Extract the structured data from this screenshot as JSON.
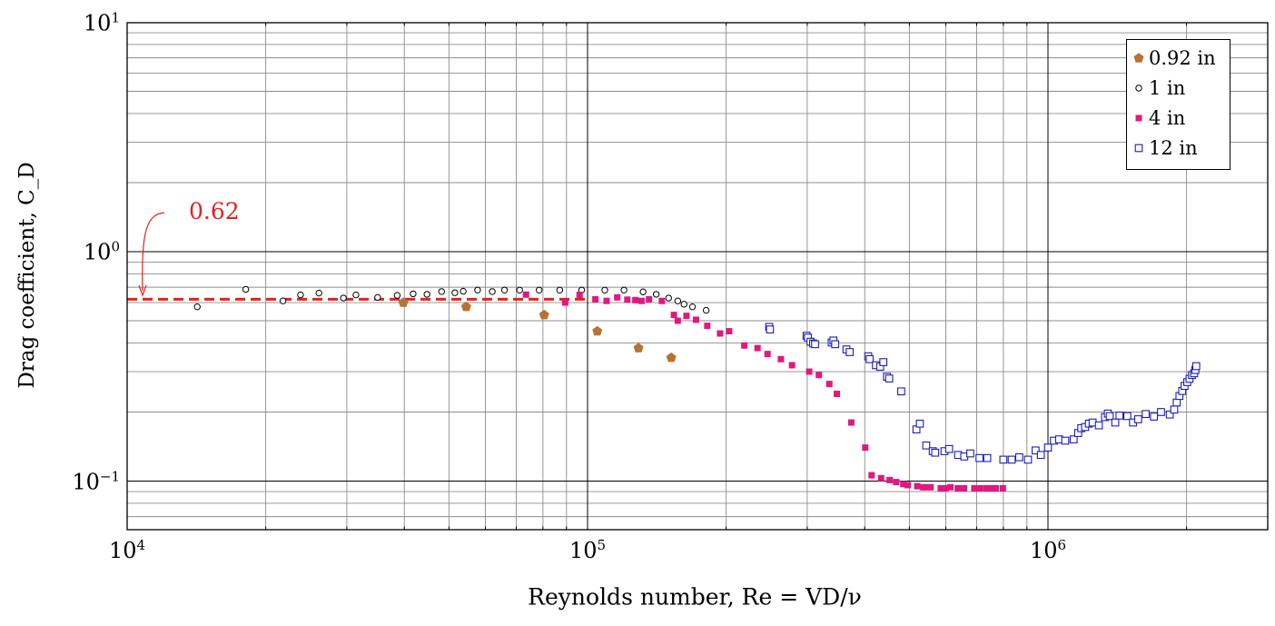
{
  "chart_data": {
    "type": "scatter",
    "xscale": "log",
    "yscale": "log",
    "xlim": [
      10000,
      2500000
    ],
    "ylim": [
      0.062,
      10
    ],
    "xlabel": "Reynolds number, Re = VD/ν",
    "ylabel": "Drag coefficient, C_D",
    "xticks": [
      {
        "value": 10000,
        "base": "10",
        "exp": "4"
      },
      {
        "value": 100000,
        "base": "10",
        "exp": "5"
      },
      {
        "value": 1000000,
        "base": "10",
        "exp": "6"
      }
    ],
    "yticks": [
      {
        "value": 10,
        "base": "10",
        "exp": "1"
      },
      {
        "value": 1,
        "base": "10",
        "exp": "0"
      },
      {
        "value": 0.1,
        "base": "10",
        "exp": "−1"
      }
    ],
    "grid": true,
    "legend_position": "top-right",
    "reference_line": {
      "value": 0.62,
      "label": "0.62",
      "color": "#e8201e",
      "style": "dashed"
    },
    "series": [
      {
        "name": "0.92 in",
        "marker": "pentagon",
        "color": "#b87333",
        "x": [
          39800,
          54500,
          80500,
          105000,
          129000,
          152000
        ],
        "y": [
          0.6,
          0.575,
          0.53,
          0.45,
          0.38,
          0.345
        ]
      },
      {
        "name": "1 in",
        "marker": "circle-open",
        "color": "#000000",
        "x": [
          14200,
          18100,
          21800,
          23800,
          26100,
          29500,
          31400,
          35000,
          38600,
          41800,
          44800,
          48200,
          51500,
          53700,
          57700,
          62100,
          66000,
          71200,
          78500,
          87000,
          97100,
          109000,
          120000,
          132000,
          141000,
          150000,
          157000,
          162000,
          169000,
          181000
        ],
        "y": [
          0.575,
          0.685,
          0.61,
          0.648,
          0.66,
          0.628,
          0.648,
          0.632,
          0.645,
          0.655,
          0.652,
          0.67,
          0.662,
          0.672,
          0.68,
          0.67,
          0.68,
          0.68,
          0.68,
          0.68,
          0.68,
          0.68,
          0.68,
          0.668,
          0.652,
          0.628,
          0.61,
          0.59,
          0.575,
          0.555
        ]
      },
      {
        "name": "4 in",
        "marker": "square-filled",
        "color": "#e0197f",
        "x": [
          73500,
          89400,
          96100,
          104000,
          110000,
          116000,
          122000,
          127000,
          131000,
          136000,
          145000,
          154000,
          157000,
          164000,
          172000,
          182000,
          194000,
          203000,
          219000,
          234000,
          246000,
          263000,
          278000,
          303000,
          318000,
          335000,
          348000,
          374000,
          401000,
          414000,
          434000,
          453000,
          468000,
          485000,
          496000,
          520000,
          535000,
          545000,
          556000,
          585000,
          599000,
          614000,
          637000,
          657000,
          692000,
          712000,
          735000,
          752000,
          770000,
          798000
        ],
        "y": [
          0.65,
          0.6,
          0.648,
          0.62,
          0.61,
          0.632,
          0.618,
          0.615,
          0.61,
          0.62,
          0.61,
          0.53,
          0.5,
          0.525,
          0.505,
          0.475,
          0.44,
          0.45,
          0.39,
          0.38,
          0.358,
          0.34,
          0.32,
          0.3,
          0.29,
          0.265,
          0.24,
          0.18,
          0.14,
          0.106,
          0.103,
          0.101,
          0.099,
          0.097,
          0.096,
          0.095,
          0.094,
          0.094,
          0.094,
          0.093,
          0.093,
          0.094,
          0.093,
          0.093,
          0.093,
          0.093,
          0.093,
          0.093,
          0.093,
          0.093
        ]
      },
      {
        "name": "12 in",
        "marker": "square-open",
        "color": "#1c1cb8",
        "x": [
          248000,
          249000,
          299000,
          301000,
          305000,
          309000,
          312000,
          339000,
          342000,
          345000,
          365000,
          371000,
          407000,
          410000,
          423000,
          432000,
          439000,
          447000,
          452000,
          480000,
          518000,
          527000,
          544000,
          562000,
          569000,
          596000,
          610000,
          638000,
          658000,
          678000,
          710000,
          738000,
          800000,
          834000,
          866000,
          905000,
          940000,
          965000,
          1000000,
          1030000,
          1057000,
          1090000,
          1137000,
          1163000,
          1181000,
          1204000,
          1227000,
          1250000,
          1290000,
          1330000,
          1349000,
          1362000,
          1400000,
          1430000,
          1487000,
          1530000,
          1570000,
          1630000,
          1699000,
          1760000,
          1839000,
          1880000,
          1904000,
          1930000,
          1957000,
          1980000,
          2007000,
          2030000,
          2055000,
          2077000,
          2090000,
          2099000
        ],
        "y": [
          0.47,
          0.458,
          0.43,
          0.422,
          0.405,
          0.398,
          0.395,
          0.402,
          0.41,
          0.395,
          0.375,
          0.365,
          0.35,
          0.34,
          0.32,
          0.315,
          0.33,
          0.285,
          0.28,
          0.246,
          0.168,
          0.178,
          0.143,
          0.135,
          0.133,
          0.135,
          0.138,
          0.13,
          0.128,
          0.132,
          0.126,
          0.126,
          0.124,
          0.124,
          0.127,
          0.124,
          0.136,
          0.13,
          0.14,
          0.15,
          0.152,
          0.15,
          0.152,
          0.162,
          0.17,
          0.172,
          0.178,
          0.18,
          0.175,
          0.19,
          0.197,
          0.192,
          0.18,
          0.193,
          0.192,
          0.18,
          0.186,
          0.196,
          0.191,
          0.2,
          0.195,
          0.205,
          0.22,
          0.235,
          0.247,
          0.26,
          0.27,
          0.279,
          0.29,
          0.295,
          0.305,
          0.317
        ]
      }
    ]
  }
}
